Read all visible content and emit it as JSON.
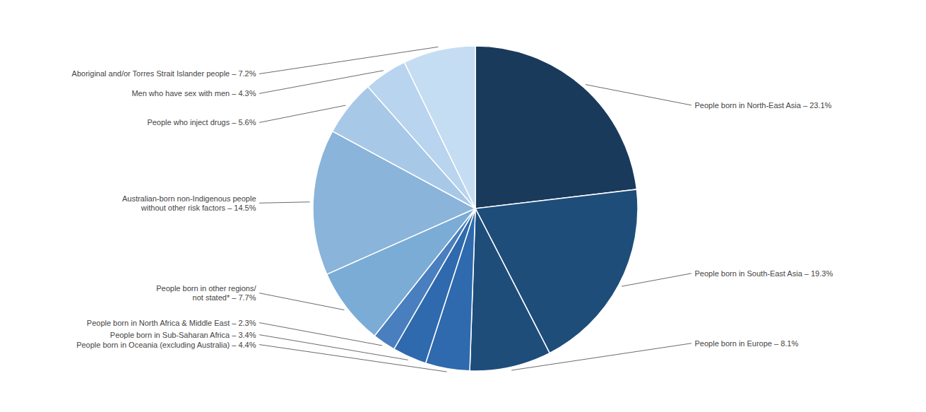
{
  "chart_data": {
    "type": "pie",
    "categories": [
      "People born in North-East Asia – 23.1%",
      "People born in South-East Asia – 19.3%",
      "People born in Europe – 8.1%",
      "People born in Oceania (excluding Australia) – 4.4%",
      "People born in Sub-Saharan Africa – 3.4%",
      "People born in North Africa & Middle East – 2.3%",
      "People born in other regions/\nnot stated* – 7.7%",
      "Australian-born non-Indigenous people\nwithout other risk factors – 14.5%",
      "People who inject drugs – 5.6%",
      "Men who have sex with men – 4.3%",
      "Aboriginal and/or Torres Strait Islander people – 7.2%"
    ],
    "values": [
      23.1,
      19.3,
      8.1,
      4.4,
      3.4,
      2.3,
      7.7,
      14.5,
      5.6,
      4.3,
      7.2
    ],
    "colors": [
      "#1a3a5c",
      "#1e4d7a",
      "#1e4d7a",
      "#2e6aad",
      "#2e6aad",
      "#4a7fbf",
      "#7aacd6",
      "#8ab4d9",
      "#a8c8e8",
      "#b8d4ee",
      "#c5ddf2"
    ]
  }
}
